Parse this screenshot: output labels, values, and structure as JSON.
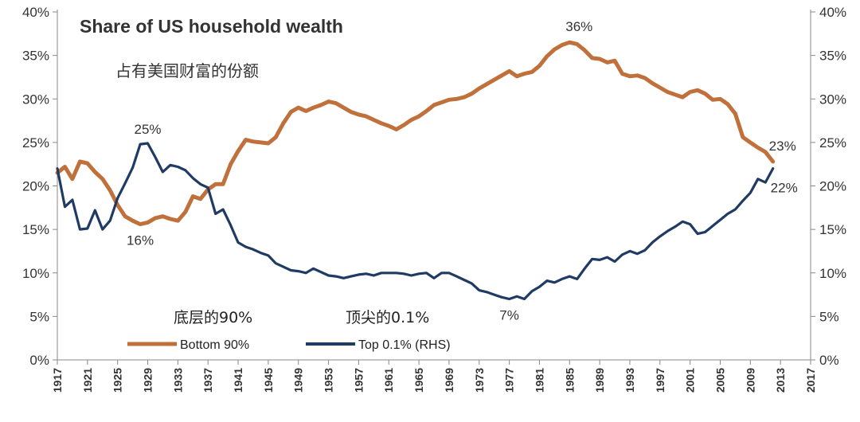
{
  "chart_data": {
    "type": "line",
    "title": "Share of US household wealth",
    "subtitle": "占有美国财富的份额",
    "x_ticks": [
      "1917",
      "1921",
      "1925",
      "1929",
      "1933",
      "1937",
      "1941",
      "1945",
      "1949",
      "1953",
      "1957",
      "1961",
      "1965",
      "1969",
      "1973",
      "1977",
      "1981",
      "1985",
      "1989",
      "1993",
      "1997",
      "2001",
      "2005",
      "2009",
      "2013",
      "2017"
    ],
    "y_ticks_left": [
      "0%",
      "5%",
      "10%",
      "15%",
      "20%",
      "25%",
      "30%",
      "35%",
      "40%"
    ],
    "y_ticks_right": [
      "0%",
      "5%",
      "10%",
      "15%",
      "20%",
      "25%",
      "30%",
      "35%",
      "40%"
    ],
    "xlim": [
      1917,
      2017
    ],
    "ylim": [
      0,
      40
    ],
    "series": [
      {
        "name": "Bottom 90%",
        "cn_label": "底层的90%",
        "color": "#c0703a",
        "points": [
          [
            1917,
            21.5
          ],
          [
            1918,
            22.2
          ],
          [
            1919,
            20.8
          ],
          [
            1920,
            22.8
          ],
          [
            1921,
            22.6
          ],
          [
            1922,
            21.6
          ],
          [
            1923,
            20.8
          ],
          [
            1924,
            19.5
          ],
          [
            1925,
            17.8
          ],
          [
            1926,
            16.5
          ],
          [
            1927,
            16.0
          ],
          [
            1928,
            15.6
          ],
          [
            1929,
            15.8
          ],
          [
            1930,
            16.3
          ],
          [
            1931,
            16.5
          ],
          [
            1932,
            16.2
          ],
          [
            1933,
            16.0
          ],
          [
            1934,
            17.0
          ],
          [
            1935,
            18.8
          ],
          [
            1936,
            18.5
          ],
          [
            1937,
            19.6
          ],
          [
            1938,
            20.2
          ],
          [
            1939,
            20.2
          ],
          [
            1940,
            22.5
          ],
          [
            1941,
            24.0
          ],
          [
            1942,
            25.3
          ],
          [
            1943,
            25.1
          ],
          [
            1944,
            25.0
          ],
          [
            1945,
            24.9
          ],
          [
            1946,
            25.6
          ],
          [
            1947,
            27.2
          ],
          [
            1948,
            28.5
          ],
          [
            1949,
            29.0
          ],
          [
            1950,
            28.6
          ],
          [
            1951,
            29.0
          ],
          [
            1952,
            29.3
          ],
          [
            1953,
            29.7
          ],
          [
            1954,
            29.5
          ],
          [
            1955,
            29.0
          ],
          [
            1956,
            28.5
          ],
          [
            1957,
            28.2
          ],
          [
            1958,
            28.0
          ],
          [
            1959,
            27.6
          ],
          [
            1960,
            27.2
          ],
          [
            1961,
            26.9
          ],
          [
            1962,
            26.5
          ],
          [
            1963,
            27.0
          ],
          [
            1964,
            27.6
          ],
          [
            1965,
            28.0
          ],
          [
            1966,
            28.6
          ],
          [
            1967,
            29.3
          ],
          [
            1968,
            29.6
          ],
          [
            1969,
            29.9
          ],
          [
            1970,
            30.0
          ],
          [
            1971,
            30.2
          ],
          [
            1972,
            30.6
          ],
          [
            1973,
            31.2
          ],
          [
            1974,
            31.7
          ],
          [
            1975,
            32.2
          ],
          [
            1976,
            32.7
          ],
          [
            1977,
            33.2
          ],
          [
            1978,
            32.6
          ],
          [
            1979,
            32.9
          ],
          [
            1980,
            33.1
          ],
          [
            1981,
            33.8
          ],
          [
            1982,
            34.9
          ],
          [
            1983,
            35.7
          ],
          [
            1984,
            36.2
          ],
          [
            1985,
            36.5
          ],
          [
            1986,
            36.3
          ],
          [
            1987,
            35.6
          ],
          [
            1988,
            34.7
          ],
          [
            1989,
            34.6
          ],
          [
            1990,
            34.2
          ],
          [
            1991,
            34.4
          ],
          [
            1992,
            32.9
          ],
          [
            1993,
            32.6
          ],
          [
            1994,
            32.7
          ],
          [
            1995,
            32.4
          ],
          [
            1996,
            31.8
          ],
          [
            1997,
            31.3
          ],
          [
            1998,
            30.8
          ],
          [
            1999,
            30.5
          ],
          [
            2000,
            30.2
          ],
          [
            2001,
            30.8
          ],
          [
            2002,
            31.0
          ],
          [
            2003,
            30.6
          ],
          [
            2004,
            29.9
          ],
          [
            2005,
            30.0
          ],
          [
            2006,
            29.4
          ],
          [
            2007,
            28.3
          ],
          [
            2008,
            25.6
          ],
          [
            2009,
            25.0
          ],
          [
            2010,
            24.4
          ],
          [
            2011,
            23.9
          ],
          [
            2012,
            22.8
          ]
        ]
      },
      {
        "name": "Top 0.1% (RHS)",
        "cn_label": "顶尖的0.1%",
        "color": "#1f3b63",
        "points": [
          [
            1917,
            22.0
          ],
          [
            1918,
            17.6
          ],
          [
            1919,
            18.4
          ],
          [
            1920,
            15.0
          ],
          [
            1921,
            15.1
          ],
          [
            1922,
            17.2
          ],
          [
            1923,
            15.0
          ],
          [
            1924,
            16.0
          ],
          [
            1925,
            18.6
          ],
          [
            1926,
            20.3
          ],
          [
            1927,
            22.1
          ],
          [
            1928,
            24.8
          ],
          [
            1929,
            24.9
          ],
          [
            1930,
            23.3
          ],
          [
            1931,
            21.6
          ],
          [
            1932,
            22.4
          ],
          [
            1933,
            22.2
          ],
          [
            1934,
            21.8
          ],
          [
            1935,
            20.9
          ],
          [
            1936,
            20.2
          ],
          [
            1937,
            19.8
          ],
          [
            1938,
            16.8
          ],
          [
            1939,
            17.3
          ],
          [
            1940,
            15.5
          ],
          [
            1941,
            13.5
          ],
          [
            1942,
            13.0
          ],
          [
            1943,
            12.7
          ],
          [
            1944,
            12.3
          ],
          [
            1945,
            12.0
          ],
          [
            1946,
            11.1
          ],
          [
            1947,
            10.7
          ],
          [
            1948,
            10.3
          ],
          [
            1949,
            10.2
          ],
          [
            1950,
            10.0
          ],
          [
            1951,
            10.5
          ],
          [
            1952,
            10.1
          ],
          [
            1953,
            9.7
          ],
          [
            1954,
            9.6
          ],
          [
            1955,
            9.4
          ],
          [
            1956,
            9.6
          ],
          [
            1957,
            9.8
          ],
          [
            1958,
            9.9
          ],
          [
            1959,
            9.7
          ],
          [
            1960,
            10.0
          ],
          [
            1961,
            10.0
          ],
          [
            1962,
            10.0
          ],
          [
            1963,
            9.9
          ],
          [
            1964,
            9.7
          ],
          [
            1965,
            9.9
          ],
          [
            1966,
            10.0
          ],
          [
            1967,
            9.4
          ],
          [
            1968,
            10.0
          ],
          [
            1969,
            10.0
          ],
          [
            1970,
            9.6
          ],
          [
            1971,
            9.2
          ],
          [
            1972,
            8.8
          ],
          [
            1973,
            8.0
          ],
          [
            1974,
            7.8
          ],
          [
            1975,
            7.5
          ],
          [
            1976,
            7.2
          ],
          [
            1977,
            7.0
          ],
          [
            1978,
            7.3
          ],
          [
            1979,
            7.0
          ],
          [
            1980,
            7.9
          ],
          [
            1981,
            8.4
          ],
          [
            1982,
            9.1
          ],
          [
            1983,
            8.9
          ],
          [
            1984,
            9.3
          ],
          [
            1985,
            9.6
          ],
          [
            1986,
            9.3
          ],
          [
            1987,
            10.5
          ],
          [
            1988,
            11.6
          ],
          [
            1989,
            11.5
          ],
          [
            1990,
            11.8
          ],
          [
            1991,
            11.3
          ],
          [
            1992,
            12.1
          ],
          [
            1993,
            12.5
          ],
          [
            1994,
            12.2
          ],
          [
            1995,
            12.6
          ],
          [
            1996,
            13.5
          ],
          [
            1997,
            14.2
          ],
          [
            1998,
            14.8
          ],
          [
            1999,
            15.3
          ],
          [
            2000,
            15.9
          ],
          [
            2001,
            15.6
          ],
          [
            2002,
            14.5
          ],
          [
            2003,
            14.7
          ],
          [
            2004,
            15.4
          ],
          [
            2005,
            16.1
          ],
          [
            2006,
            16.8
          ],
          [
            2007,
            17.3
          ],
          [
            2008,
            18.3
          ],
          [
            2009,
            19.2
          ],
          [
            2010,
            20.8
          ],
          [
            2011,
            20.4
          ],
          [
            2012,
            22.0
          ]
        ]
      }
    ],
    "annotations": [
      {
        "text": "25%",
        "x": 1929,
        "y": 24.9,
        "series": 1,
        "pos": "above"
      },
      {
        "text": "16%",
        "x": 1928,
        "y": 15.6,
        "series": 0,
        "pos": "below"
      },
      {
        "text": "36%",
        "x": 1985,
        "y": 36.5,
        "series": 0,
        "pos": "above-right"
      },
      {
        "text": "7%",
        "x": 1977,
        "y": 7.0,
        "series": 1,
        "pos": "below"
      },
      {
        "text": "23%",
        "x": 2012,
        "y": 22.8,
        "series": 0,
        "pos": "above-right"
      },
      {
        "text": "22%",
        "x": 2012,
        "y": 22.0,
        "series": 1,
        "pos": "below-right"
      }
    ],
    "grid": false,
    "legend_position": "bottom-left"
  }
}
